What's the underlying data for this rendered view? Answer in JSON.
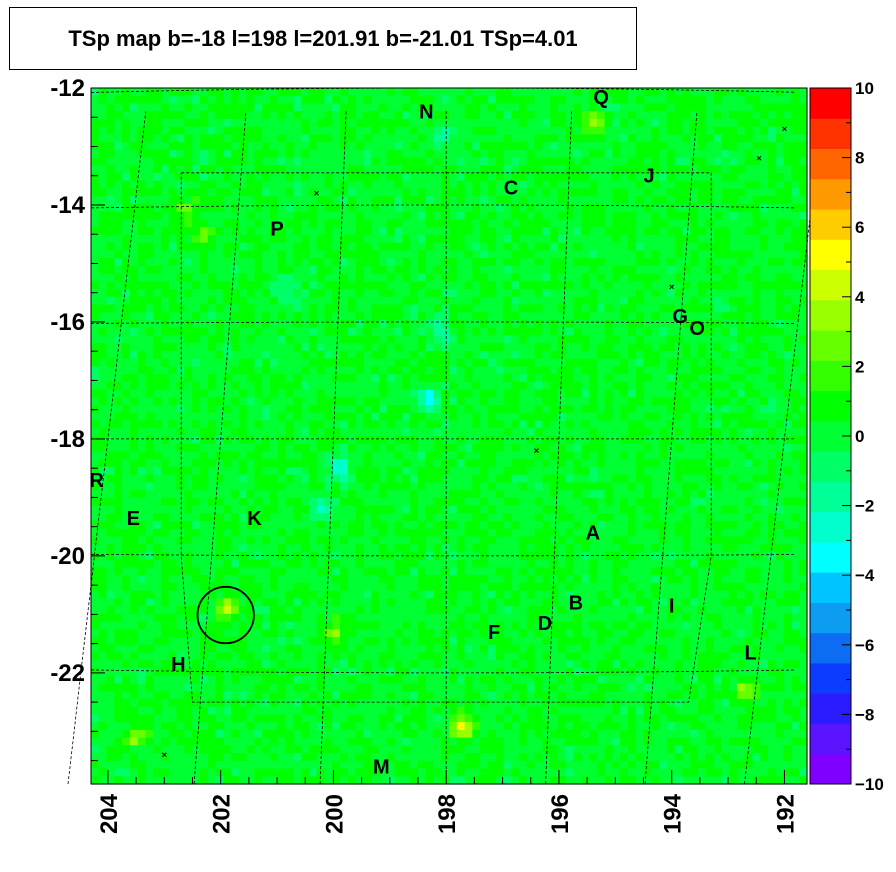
{
  "title": "TSp map b=-18 l=198 l=201.91 b=-21.01 TSp=4.01",
  "chart_data": {
    "type": "heatmap",
    "title": "TSp map b=-18 l=198 l=201.91 b=-21.01 TSp=4.01",
    "xlabel": "",
    "ylabel": "",
    "xlim": [
      204.3,
      191.6
    ],
    "ylim": [
      -23.9,
      -12.0
    ],
    "x_ticks": [
      "204",
      "202",
      "200",
      "198",
      "196",
      "194",
      "192"
    ],
    "x_tick_values": [
      204,
      202,
      200,
      198,
      196,
      194,
      192
    ],
    "y_ticks": [
      "-12",
      "-14",
      "-16",
      "-18",
      "-20",
      "-22"
    ],
    "y_tick_values": [
      -12,
      -14,
      -16,
      -18,
      -20,
      -22
    ],
    "z_range": [
      -10,
      10
    ],
    "colorbar_labels": [
      "10",
      "8",
      "6",
      "4",
      "2",
      "0",
      "−2",
      "−4",
      "−6",
      "−8",
      "−10"
    ],
    "colorbar_values": [
      10,
      8,
      6,
      4,
      2,
      0,
      -2,
      -4,
      -6,
      -8,
      -10
    ],
    "palette": [
      "#7f00ff",
      "#5a14ff",
      "#2b1cff",
      "#0c3cff",
      "#0c6cf2",
      "#0c9cf2",
      "#00c4ff",
      "#00ffff",
      "#00ffcc",
      "#00ff96",
      "#00ff66",
      "#00ff33",
      "#00ff00",
      "#33ff00",
      "#66ff00",
      "#99ff00",
      "#ccff00",
      "#ffff00",
      "#ffcc00",
      "#ff9900",
      "#ff6600",
      "#ff3300",
      "#ff0000"
    ],
    "background_level": 0.3,
    "hotspots": [
      {
        "l": 201.9,
        "b": -20.9,
        "z": 4.0
      },
      {
        "l": 197.7,
        "b": -22.95,
        "z": 5.2
      },
      {
        "l": 195.4,
        "b": -12.6,
        "z": 3.5
      },
      {
        "l": 192.7,
        "b": -22.3,
        "z": 3.2
      },
      {
        "l": 203.5,
        "b": -23.1,
        "z": 3.0
      },
      {
        "l": 202.6,
        "b": -14.1,
        "z": 2.6
      },
      {
        "l": 200.0,
        "b": -21.3,
        "z": 2.8
      },
      {
        "l": 202.3,
        "b": -14.5,
        "z": 2.2
      }
    ],
    "coldspots": [
      {
        "l": 198.3,
        "b": -17.3,
        "z": -4.2
      },
      {
        "l": 199.9,
        "b": -18.5,
        "z": -3.6
      },
      {
        "l": 198.1,
        "b": -16.2,
        "z": -2.8
      },
      {
        "l": 200.2,
        "b": -19.2,
        "z": -2.6
      },
      {
        "l": 200.9,
        "b": -15.5,
        "z": -2.0
      },
      {
        "l": 198.1,
        "b": -12.8,
        "z": -1.8
      }
    ],
    "circle": {
      "l": 201.91,
      "b": -21.01,
      "r": 0.5
    },
    "crosses": [
      {
        "l": 192.0,
        "b": -12.7
      },
      {
        "l": 192.45,
        "b": -13.2
      },
      {
        "l": 200.3,
        "b": -13.8
      },
      {
        "l": 194.0,
        "b": -15.4
      },
      {
        "l": 196.4,
        "b": -18.2
      },
      {
        "l": 203.0,
        "b": -23.4
      }
    ],
    "sources": [
      {
        "label": "Q",
        "l": 195.25,
        "b": -12.15
      },
      {
        "label": "N",
        "l": 198.35,
        "b": -12.4
      },
      {
        "label": "J",
        "l": 194.4,
        "b": -13.5
      },
      {
        "label": "C",
        "l": 196.85,
        "b": -13.7
      },
      {
        "label": "P",
        "l": 201.0,
        "b": -14.4
      },
      {
        "label": "G",
        "l": 193.85,
        "b": -15.9
      },
      {
        "label": "O",
        "l": 193.55,
        "b": -16.1
      },
      {
        "label": "R",
        "l": 204.2,
        "b": -18.7
      },
      {
        "label": "E",
        "l": 203.55,
        "b": -19.35
      },
      {
        "label": "K",
        "l": 201.4,
        "b": -19.35
      },
      {
        "label": "A",
        "l": 195.4,
        "b": -19.6
      },
      {
        "label": "B",
        "l": 195.7,
        "b": -20.8
      },
      {
        "label": "I",
        "l": 194.0,
        "b": -20.85
      },
      {
        "label": "D",
        "l": 196.25,
        "b": -21.15
      },
      {
        "label": "F",
        "l": 197.15,
        "b": -21.3
      },
      {
        "label": "H",
        "l": 202.75,
        "b": -21.85
      },
      {
        "label": "L",
        "l": 192.6,
        "b": -21.65
      },
      {
        "label": "M",
        "l": 199.15,
        "b": -23.6
      }
    ],
    "grid": true
  }
}
